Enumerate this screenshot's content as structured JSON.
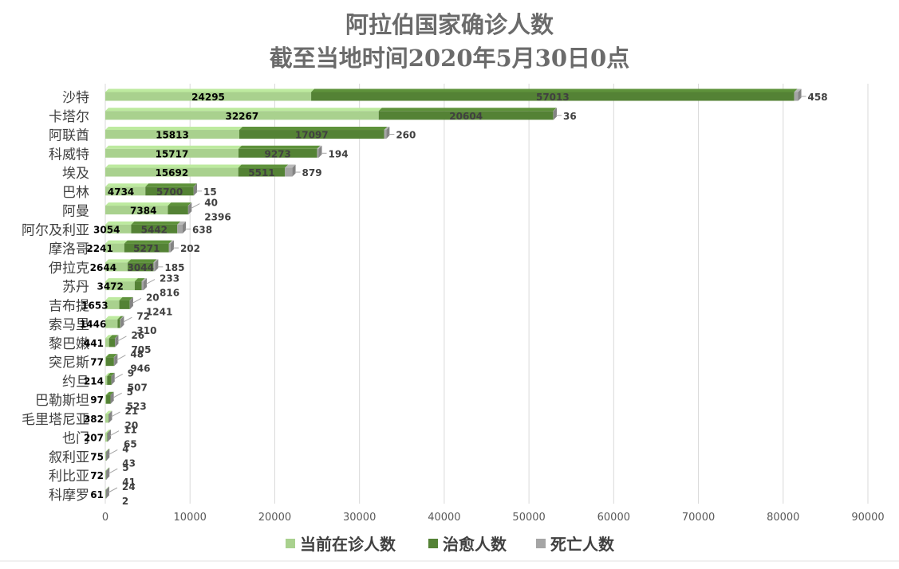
{
  "chart_data": {
    "type": "bar",
    "orientation": "horizontal",
    "stacked": true,
    "title": "阿拉伯国家确诊人数",
    "subtitle": "截至当地时间2020年5月30日0点",
    "categories": [
      "沙特",
      "卡塔尔",
      "阿联酋",
      "科威特",
      "埃及",
      "巴林",
      "阿曼",
      "阿尔及利亚",
      "摩洛哥",
      "伊拉克",
      "苏丹",
      "吉布提",
      "索马里",
      "黎巴嫩",
      "突尼斯",
      "约旦",
      "巴勒斯坦",
      "毛里塔尼亚",
      "也门",
      "叙利亚",
      "利比亚",
      "科摩罗"
    ],
    "series": [
      {
        "name": "当前在诊人数",
        "color": "#a9d18e",
        "values": [
          24295,
          32267,
          15813,
          15717,
          15692,
          4734,
          7384,
          3054,
          2241,
          2644,
          3472,
          1653,
          1446,
          441,
          77,
          214,
          97,
          382,
          207,
          75,
          72,
          61
        ]
      },
      {
        "name": "治愈人数",
        "color": "#548235",
        "values": [
          57013,
          20604,
          17097,
          9273,
          5511,
          5700,
          2396,
          5442,
          5271,
          3044,
          816,
          1241,
          310,
          705,
          946,
          507,
          523,
          20,
          65,
          43,
          41,
          2
        ]
      },
      {
        "name": "死亡人数",
        "color": "#a5a5a5",
        "values": [
          458,
          36,
          260,
          194,
          879,
          15,
          40,
          638,
          202,
          185,
          233,
          20,
          72,
          26,
          48,
          9,
          5,
          21,
          11,
          4,
          5,
          24
        ]
      }
    ],
    "xlim": [
      0,
      90000
    ],
    "xticks": [
      0,
      10000,
      20000,
      30000,
      40000,
      50000,
      60000,
      70000,
      80000,
      90000
    ],
    "grid": true,
    "legend_position": "bottom"
  }
}
